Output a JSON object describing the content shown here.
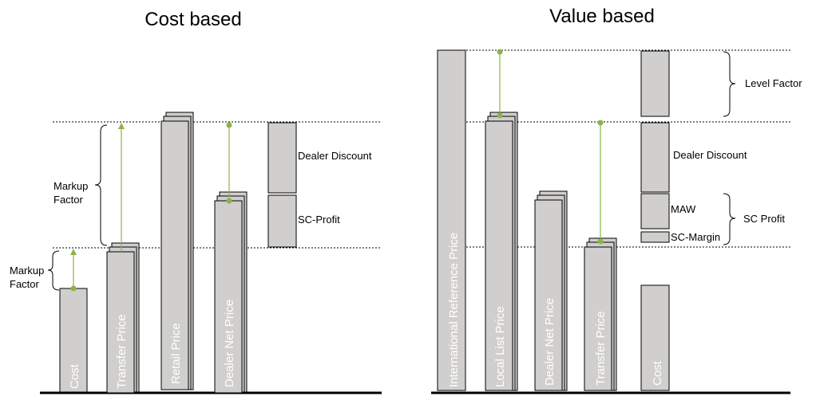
{
  "cost_based": {
    "title": "Cost based",
    "markup_factor_upper": "Markup\nFactor",
    "markup_factor_lower": "Markup\nFactor",
    "bars": [
      "Cost",
      "Transfer Price",
      "Retail Price",
      "Dealer Net Price"
    ],
    "dealer_discount": "Dealer Discount",
    "sc_profit": "SC-Profit"
  },
  "value_based": {
    "title": "Value based",
    "bars": [
      "International Reference Price",
      "Local List Price",
      "Dealer Net Price",
      "Transfer Price",
      "Cost"
    ],
    "level_factor": "Level Factor",
    "dealer_discount": "Dealer Discount",
    "maw": "MAW",
    "sc_margin": "SC-Margin",
    "sc_profit": "SC Profit"
  },
  "colors": {
    "bar_fill": "#d0cfcd",
    "arrow": "#8db24a"
  }
}
